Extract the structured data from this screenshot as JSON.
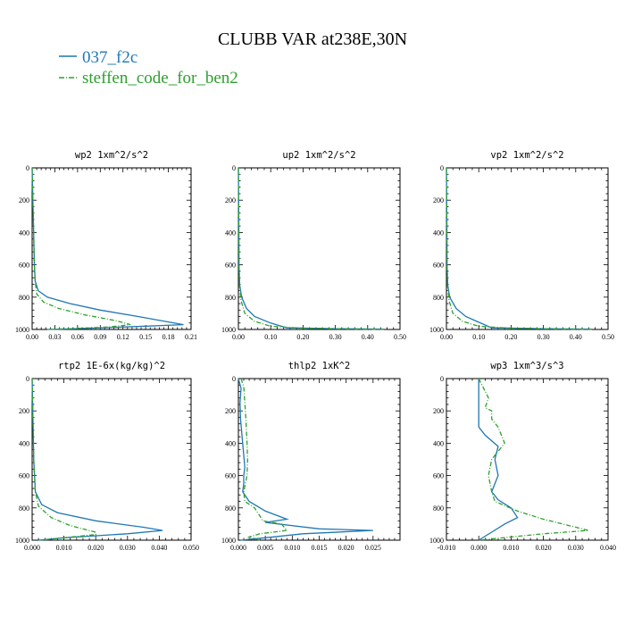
{
  "figure": {
    "title": "CLUBB VAR at238E,30N",
    "legend": [
      {
        "label": "037_f2c",
        "color": "#1f77b4",
        "dash": "solid"
      },
      {
        "label": "steffen_code_for_ben2",
        "color": "#2ca02c",
        "dash": "dashdot"
      }
    ]
  },
  "chart_data": [
    {
      "type": "line",
      "title": "wp2  1xm^2/s^2",
      "xlim": [
        0.0,
        0.21
      ],
      "xticks": [
        "0.00",
        "0.03",
        "0.06",
        "0.09",
        "0.12",
        "0.15",
        "0.18",
        "0.21"
      ],
      "ylim": [
        1000,
        0
      ],
      "yticks": [
        "0",
        "200",
        "400",
        "600",
        "800",
        "1000"
      ],
      "series": [
        {
          "name": "037_f2c",
          "x": [
            0.0,
            0.001,
            0.002,
            0.003,
            0.004,
            0.008,
            0.02,
            0.05,
            0.09,
            0.14,
            0.2,
            0.12,
            0.06,
            0.02
          ],
          "y": [
            0,
            200,
            400,
            600,
            700,
            760,
            800,
            840,
            880,
            920,
            970,
            985,
            995,
            1000
          ]
        },
        {
          "name": "steffen_code_for_ben2",
          "x": [
            0.0,
            0.001,
            0.002,
            0.003,
            0.004,
            0.006,
            0.015,
            0.035,
            0.07,
            0.11,
            0.13,
            0.1,
            0.05,
            0.02
          ],
          "y": [
            0,
            200,
            400,
            600,
            700,
            780,
            830,
            870,
            910,
            945,
            970,
            985,
            995,
            1000
          ]
        }
      ]
    },
    {
      "type": "line",
      "title": "up2  1xm^2/s^2",
      "xlim": [
        0.0,
        0.5
      ],
      "xticks": [
        "0.00",
        "0.10",
        "0.20",
        "0.30",
        "0.40",
        "0.50"
      ],
      "ylim": [
        1000,
        0
      ],
      "yticks": [
        "0",
        "200",
        "400",
        "600",
        "800",
        "1000"
      ],
      "series": [
        {
          "name": "037_f2c",
          "x": [
            0.0,
            0.001,
            0.002,
            0.004,
            0.01,
            0.025,
            0.05,
            0.1,
            0.15,
            0.3,
            0.45
          ],
          "y": [
            0,
            300,
            600,
            720,
            800,
            870,
            920,
            960,
            990,
            995,
            998
          ]
        },
        {
          "name": "steffen_code_for_ben2",
          "x": [
            0.0,
            0.001,
            0.002,
            0.003,
            0.008,
            0.02,
            0.05,
            0.1,
            0.18,
            0.3,
            0.45
          ],
          "y": [
            0,
            300,
            600,
            720,
            820,
            900,
            950,
            980,
            990,
            996,
            999
          ]
        }
      ]
    },
    {
      "type": "line",
      "title": "vp2  1xm^2/s^2",
      "xlim": [
        0.0,
        0.5
      ],
      "xticks": [
        "0.00",
        "0.10",
        "0.20",
        "0.30",
        "0.40",
        "0.50"
      ],
      "ylim": [
        1000,
        0
      ],
      "yticks": [
        "0",
        "200",
        "400",
        "600",
        "800",
        "1000"
      ],
      "series": [
        {
          "name": "037_f2c",
          "x": [
            0.0,
            0.001,
            0.002,
            0.004,
            0.01,
            0.03,
            0.06,
            0.1,
            0.14,
            0.3,
            0.45
          ],
          "y": [
            0,
            300,
            600,
            720,
            800,
            870,
            920,
            955,
            990,
            995,
            998
          ]
        },
        {
          "name": "steffen_code_for_ben2",
          "x": [
            0.0,
            0.001,
            0.002,
            0.003,
            0.008,
            0.02,
            0.05,
            0.1,
            0.18,
            0.3,
            0.45
          ],
          "y": [
            0,
            300,
            600,
            720,
            820,
            900,
            950,
            980,
            990,
            996,
            999
          ]
        }
      ]
    },
    {
      "type": "line",
      "title": "rtp2  1E-6x(kg/kg)^2",
      "xlim": [
        0.0,
        0.05
      ],
      "xticks": [
        "0.000",
        "0.010",
        "0.020",
        "0.030",
        "0.040",
        "0.050"
      ],
      "ylim": [
        1000,
        0
      ],
      "yticks": [
        "0",
        "200",
        "400",
        "600",
        "800",
        "1000"
      ],
      "series": [
        {
          "name": "037_f2c",
          "x": [
            0.0,
            0.0002,
            0.0005,
            0.001,
            0.003,
            0.008,
            0.02,
            0.035,
            0.041,
            0.03,
            0.01,
            0.002
          ],
          "y": [
            0,
            200,
            500,
            700,
            780,
            830,
            880,
            920,
            940,
            960,
            985,
            1000
          ]
        },
        {
          "name": "steffen_code_for_ben2",
          "x": [
            0.0,
            0.0002,
            0.0005,
            0.001,
            0.002,
            0.006,
            0.012,
            0.02,
            0.02,
            0.01,
            0.003
          ],
          "y": [
            0,
            200,
            500,
            700,
            790,
            860,
            910,
            950,
            965,
            985,
            1000
          ]
        }
      ]
    },
    {
      "type": "line",
      "title": "thlp2  1xK^2",
      "xlim": [
        0.0,
        0.03
      ],
      "xticks": [
        "0.000",
        "0.005",
        "0.010",
        "0.015",
        "0.020",
        "0.025"
      ],
      "ylim": [
        1000,
        0
      ],
      "yticks": [
        "0",
        "200",
        "400",
        "600",
        "800",
        "1000"
      ],
      "series": [
        {
          "name": "037_f2c",
          "x": [
            0.0,
            0.0005,
            0.0003,
            0.0004,
            0.0008,
            0.0012,
            0.001,
            0.001,
            0.0008,
            0.002,
            0.005,
            0.009,
            0.005,
            0.015,
            0.025,
            0.012,
            0.005,
            0.0004
          ],
          "y": [
            0,
            60,
            150,
            250,
            400,
            550,
            600,
            650,
            700,
            760,
            820,
            870,
            890,
            930,
            940,
            960,
            985,
            1000
          ]
        },
        {
          "name": "steffen_code_for_ben2",
          "x": [
            0.0005,
            0.001,
            0.0012,
            0.0014,
            0.0016,
            0.0017,
            0.0016,
            0.001,
            0.0012,
            0.003,
            0.004,
            0.0045,
            0.008,
            0.009,
            0.004,
            0.002,
            0.004
          ],
          "y": [
            0,
            50,
            150,
            250,
            400,
            500,
            600,
            700,
            760,
            800,
            850,
            880,
            900,
            940,
            960,
            980,
            1000
          ]
        }
      ]
    },
    {
      "type": "line",
      "title": "wp3  1xm^3/s^3",
      "xlim": [
        -0.01,
        0.04
      ],
      "xticks": [
        "-0.010",
        "0.000",
        "0.010",
        "0.020",
        "0.030",
        "0.040"
      ],
      "ylim": [
        1000,
        0
      ],
      "yticks": [
        "0",
        "200",
        "400",
        "600",
        "800",
        "1000"
      ],
      "series": [
        {
          "name": "037_f2c",
          "x": [
            0.0,
            0.0,
            0.0,
            0.002,
            0.006,
            0.005,
            0.006,
            0.004,
            0.006,
            0.01,
            0.012,
            0.008,
            0.004,
            0.0
          ],
          "y": [
            0,
            200,
            300,
            350,
            420,
            500,
            600,
            700,
            750,
            800,
            860,
            900,
            950,
            1000
          ]
        },
        {
          "name": "steffen_code_for_ben2",
          "x": [
            0.0,
            0.003,
            0.002,
            0.004,
            0.004,
            0.006,
            0.008,
            0.004,
            0.003,
            0.004,
            0.005,
            0.012,
            0.02,
            0.028,
            0.034,
            0.02,
            0.01,
            0.0
          ],
          "y": [
            0,
            120,
            180,
            200,
            250,
            300,
            400,
            500,
            600,
            700,
            760,
            820,
            870,
            910,
            940,
            960,
            980,
            1000
          ]
        }
      ]
    }
  ]
}
